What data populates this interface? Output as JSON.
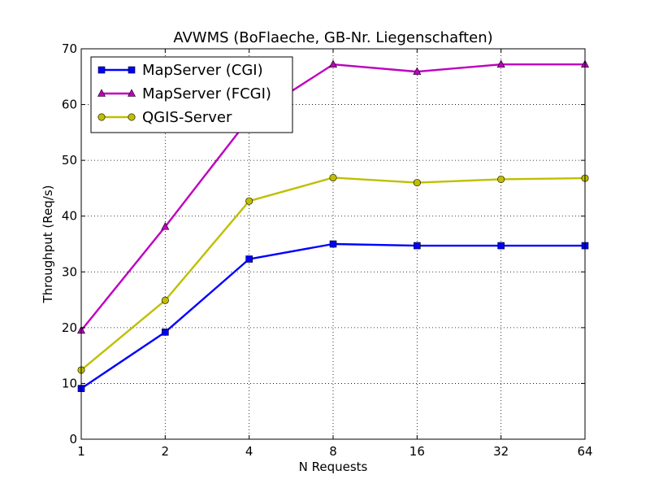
{
  "chart_data": {
    "type": "line",
    "title": "AVWMS (BoFlaeche, GB-Nr. Liegenschaften)",
    "xlabel": "N Requests",
    "ylabel": "Throughput (Req/s)",
    "x_scale": "log2",
    "x": [
      "1",
      "2",
      "4",
      "8",
      "16",
      "32",
      "64"
    ],
    "ylim": [
      0,
      70
    ],
    "yticks": [
      "0",
      "10",
      "20",
      "30",
      "40",
      "50",
      "60",
      "70"
    ],
    "grid": true,
    "legend_position": "top-left",
    "series": [
      {
        "name": "MapServer (CGI)",
        "color": "#0000ff",
        "marker": "square",
        "values": [
          9.1,
          19.2,
          32.3,
          35.0,
          34.7,
          34.7,
          34.7
        ]
      },
      {
        "name": "MapServer (FCGI)",
        "color": "#bf00bf",
        "marker": "triangle",
        "values": [
          19.5,
          38.1,
          57.5,
          67.2,
          65.9,
          67.2,
          67.2
        ]
      },
      {
        "name": "QGIS-Server",
        "color": "#bfbf00",
        "marker": "circle",
        "values": [
          12.4,
          24.9,
          42.7,
          46.9,
          46.0,
          46.6,
          46.8
        ]
      }
    ]
  }
}
